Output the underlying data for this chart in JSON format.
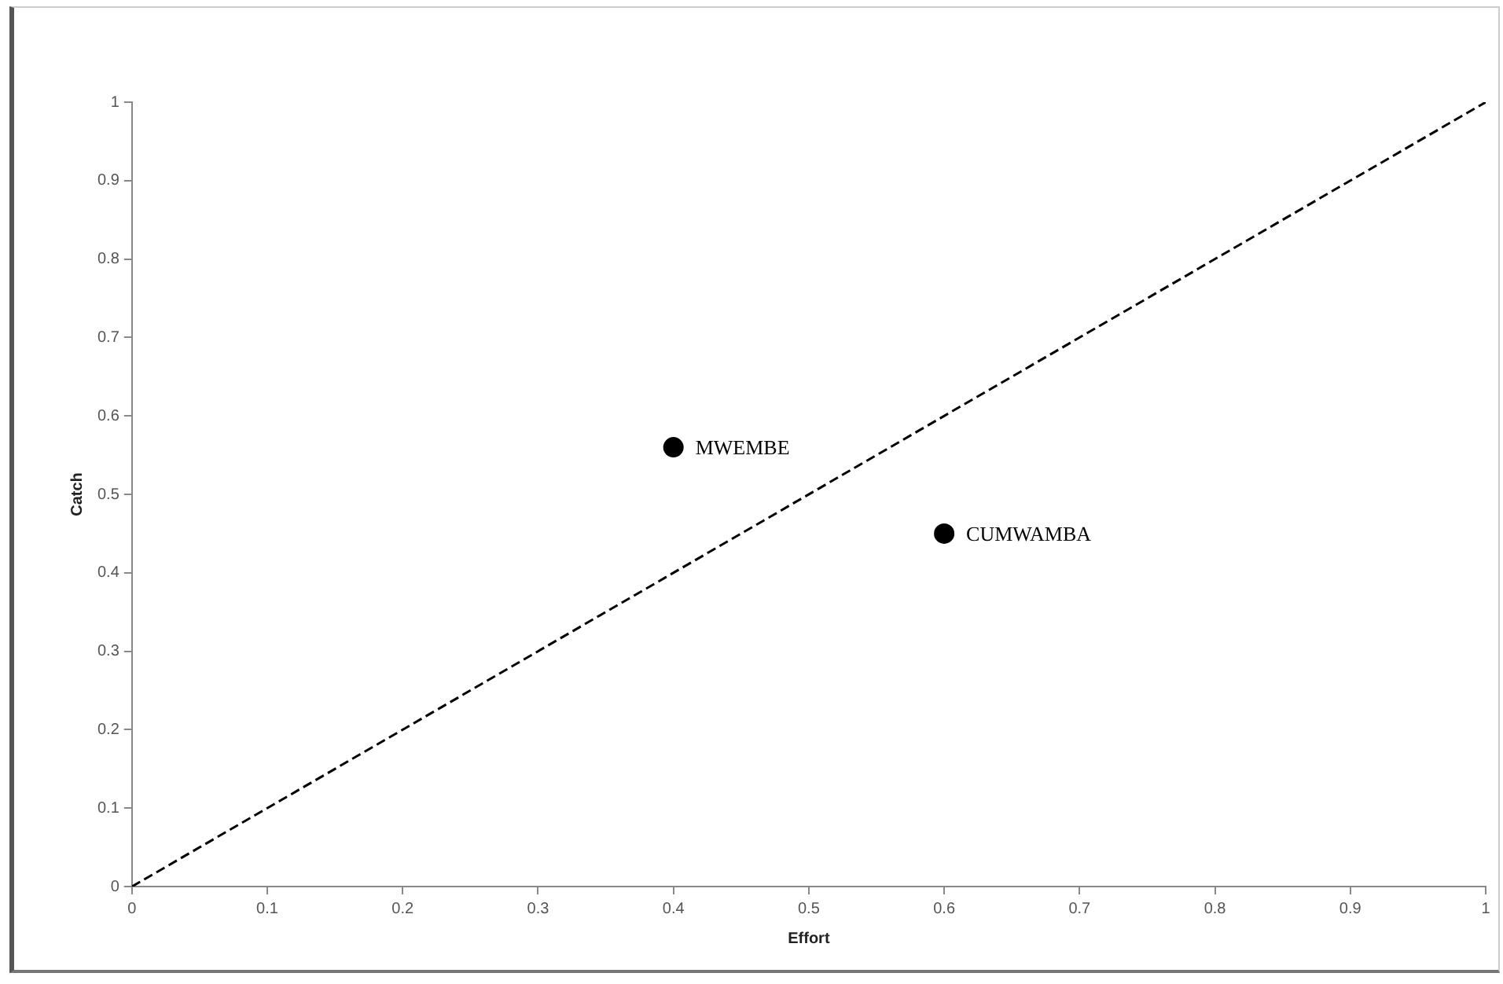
{
  "chart_data": {
    "type": "scatter",
    "xlabel": "Effort",
    "ylabel": "Catch",
    "xlim": [
      0,
      1
    ],
    "ylim": [
      0,
      1
    ],
    "xticks": [
      0,
      0.1,
      0.2,
      0.3,
      0.4,
      0.5,
      0.6,
      0.7,
      0.8,
      0.9,
      1
    ],
    "yticks": [
      0,
      0.1,
      0.2,
      0.3,
      0.4,
      0.5,
      0.6,
      0.7,
      0.8,
      0.9,
      1
    ],
    "grid": false,
    "legend": false,
    "series": [
      {
        "type": "line",
        "x": [
          0,
          1
        ],
        "values": [
          0,
          1
        ],
        "color": "#000000",
        "line_style": "dashed",
        "marker": "none"
      },
      {
        "name": "MWEMBE",
        "x": [
          0.4
        ],
        "values": [
          0.56
        ],
        "color": "#000000",
        "marker": "circle"
      },
      {
        "name": "CUMWAMBA",
        "x": [
          0.6
        ],
        "values": [
          0.45
        ],
        "color": "#000000",
        "marker": "circle"
      }
    ]
  }
}
